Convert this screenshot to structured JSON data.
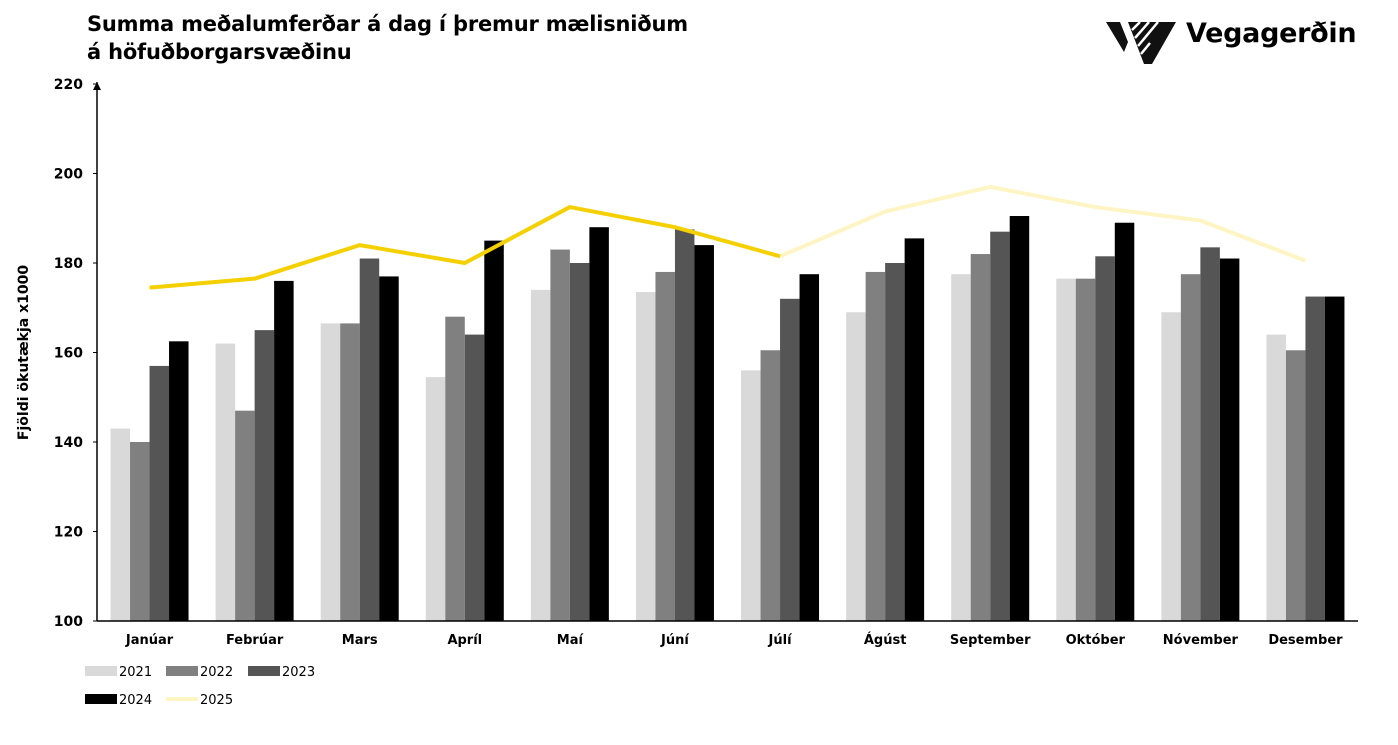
{
  "header": {
    "title": "Summa meðalumferðar á dag í þremur mælisniðum á höfuðborgarsvæðinu",
    "logo_text": "Vegagerðin"
  },
  "colors": {
    "2021": "#d9d9d9",
    "2022": "#808080",
    "2023": "#555555",
    "2024": "#000000",
    "2025_solid": "#f5d000",
    "2025_faded": "#fff4c4",
    "axis": "#000000"
  },
  "chart_data": {
    "type": "bar",
    "title": "Summa meðalumferðar á dag í þremur mælisniðum á höfuðborgarsvæðinu",
    "xlabel": "",
    "ylabel": "Fjöldi ökutækja x1000",
    "ylim": [
      100,
      220
    ],
    "yticks": [
      100,
      120,
      140,
      160,
      180,
      200,
      220
    ],
    "grid": false,
    "legend_position": "bottom-left",
    "categories": [
      "Janúar",
      "Febrúar",
      "Mars",
      "Apríl",
      "Maí",
      "Júní",
      "Júlí",
      "Ágúst",
      "September",
      "Október",
      "Nóvember",
      "Desember"
    ],
    "series": [
      {
        "name": "2021",
        "type": "bar",
        "color": "#d9d9d9",
        "values": [
          143,
          162,
          166.5,
          154.5,
          174,
          173.5,
          156,
          169,
          177.5,
          176.5,
          169,
          164
        ]
      },
      {
        "name": "2022",
        "type": "bar",
        "color": "#808080",
        "values": [
          140,
          147,
          166.5,
          168,
          183,
          178,
          160.5,
          178,
          182,
          176.5,
          177.5,
          160.5
        ]
      },
      {
        "name": "2023",
        "type": "bar",
        "color": "#555555",
        "values": [
          157,
          165,
          181,
          164,
          180,
          187.5,
          172,
          180,
          187,
          181.5,
          183.5,
          172.5
        ]
      },
      {
        "name": "2024",
        "type": "bar",
        "color": "#000000",
        "values": [
          162.5,
          176,
          177,
          185,
          188,
          184,
          177.5,
          185.5,
          190.5,
          189,
          181,
          172.5
        ]
      },
      {
        "name": "2025",
        "type": "line",
        "color": "#f5d000",
        "color_projected": "#fff4c4",
        "actual_through_index": 6,
        "values": [
          174.5,
          176.5,
          184,
          180,
          192.5,
          188,
          181.5,
          191.5,
          197,
          192.5,
          189.5,
          180.5
        ]
      }
    ]
  }
}
